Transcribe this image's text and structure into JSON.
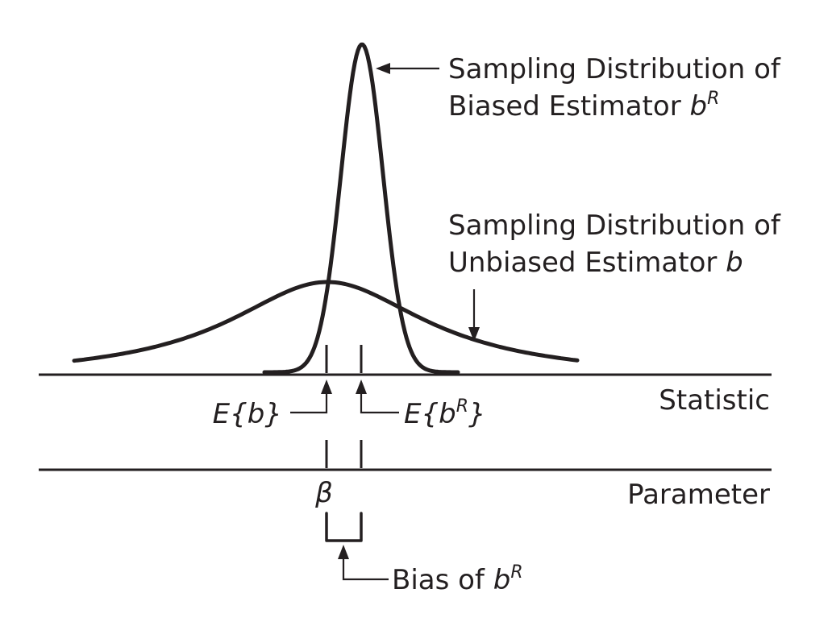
{
  "labels": {
    "biased_line1": "Sampling Distribution of",
    "biased_line2_prefix": "Biased Estimator ",
    "biased_symbol": "b",
    "biased_superscript": "R",
    "unbiased_line1": "Sampling Distribution of",
    "unbiased_line2_prefix": "Unbiased Estimator ",
    "unbiased_symbol": "b",
    "statistic_axis": "Statistic",
    "parameter_axis": "Parameter",
    "expected_b": "E{b}",
    "expected_br_prefix": "E{b",
    "expected_br_superscript": "R",
    "expected_br_suffix": "}",
    "beta": "β",
    "bias_prefix": "Bias of ",
    "bias_symbol": "b",
    "bias_superscript": "R"
  }
}
